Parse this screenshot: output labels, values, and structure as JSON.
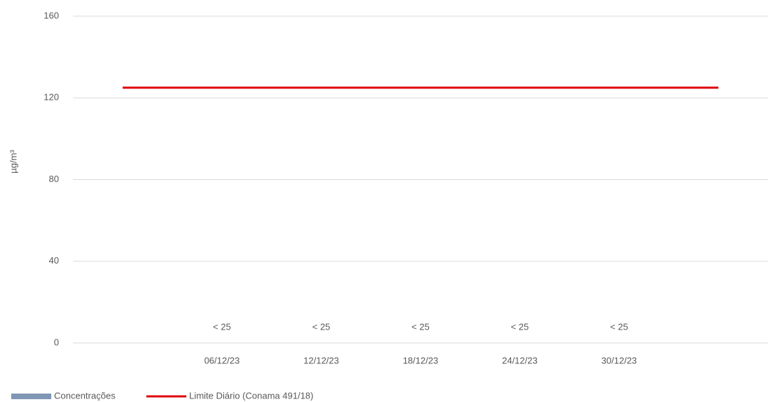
{
  "chart_data": {
    "type": "bar+line",
    "categories": [
      null,
      "06/12/23",
      "12/12/23",
      "18/12/23",
      "24/12/23",
      "30/12/23",
      null
    ],
    "series": [
      {
        "name": "Concentrações",
        "type": "bar",
        "color": "#8096b4",
        "values": [
          null,
          null,
          null,
          null,
          null,
          null,
          null
        ],
        "value_labels": [
          null,
          "< 25",
          "< 25",
          "< 25",
          "< 25",
          "< 25",
          null
        ]
      },
      {
        "name": "Limite Diário (Conama 491/18)",
        "type": "line",
        "color": "#e0000b",
        "values": [
          125,
          125,
          125,
          125,
          125,
          125,
          125
        ]
      }
    ],
    "ylabel": "µg/m³",
    "ylim": [
      0,
      160
    ],
    "yticks": [
      0,
      40,
      80,
      120,
      160
    ],
    "grid": true,
    "legend": "bottom-left"
  }
}
